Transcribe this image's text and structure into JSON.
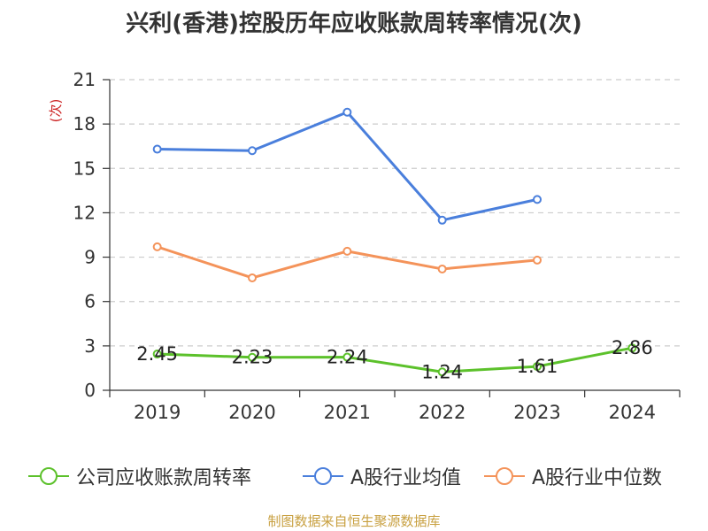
{
  "title": "兴利(香港)控股历年应收账款周转率情况(次)",
  "source": "制图数据来自恒生聚源数据库",
  "colors": {
    "green": "#5cc12b",
    "blue": "#4a7fdc",
    "orange": "#f4935a",
    "grid": "#cccccc",
    "axis": "#333333"
  },
  "chart_data": {
    "type": "line",
    "categories": [
      "2019",
      "2020",
      "2021",
      "2022",
      "2023",
      "2024"
    ],
    "ylabel": "(次)",
    "ylim": [
      0,
      21
    ],
    "yticks": [
      "0",
      "3",
      "6",
      "9",
      "12",
      "15",
      "18",
      "21"
    ],
    "grid": true,
    "legend": "bottom",
    "series": [
      {
        "name": "公司应收账款周转率",
        "color": "#5cc12b",
        "values": [
          2.45,
          2.23,
          2.24,
          1.24,
          1.61,
          2.86
        ],
        "labels": [
          "2.45",
          "2.23",
          "2.24",
          "1.24",
          "1.61",
          "2.86"
        ]
      },
      {
        "name": "A股行业均值",
        "color": "#4a7fdc",
        "values": [
          16.3,
          16.2,
          18.8,
          11.5,
          12.9,
          null
        ]
      },
      {
        "name": "A股行业中位数",
        "color": "#f4935a",
        "values": [
          9.7,
          7.6,
          9.4,
          8.2,
          8.8,
          null
        ]
      }
    ]
  }
}
